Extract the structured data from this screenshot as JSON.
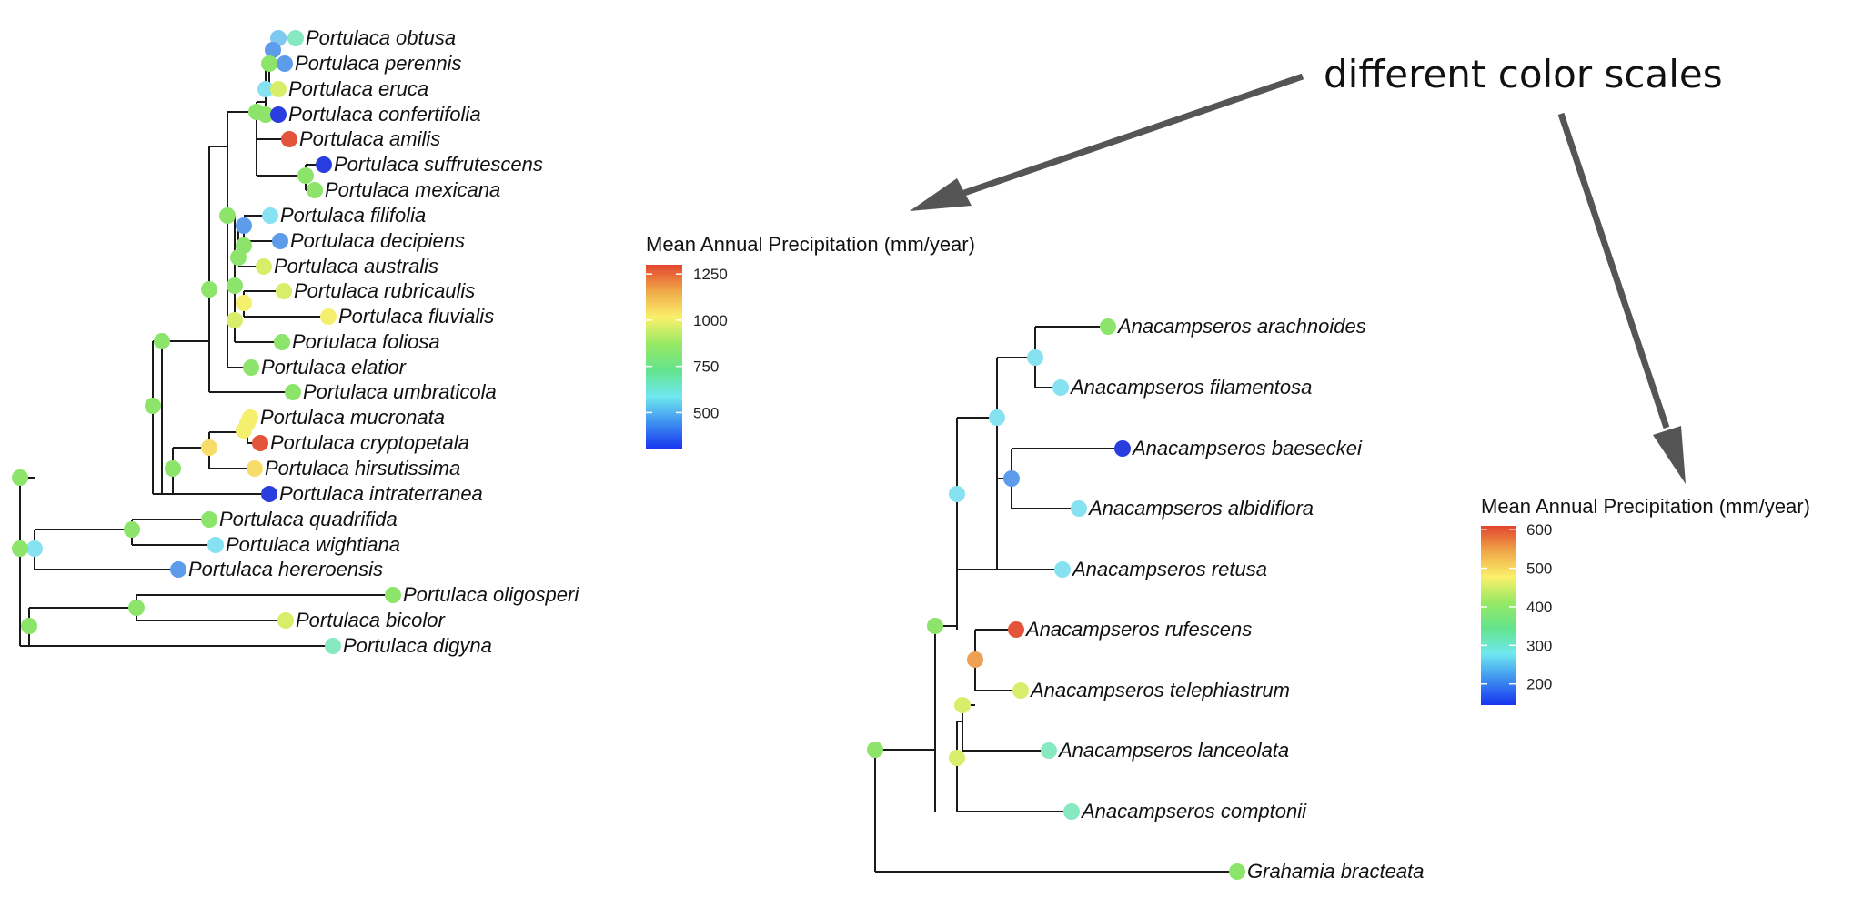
{
  "annotation": {
    "text": "different color scales"
  },
  "legends": [
    {
      "id": "left",
      "title": "Mean Annual Precipitation (mm/year)",
      "ticks": [
        {
          "value": 1250,
          "label": "1250"
        },
        {
          "value": 1000,
          "label": "1000"
        },
        {
          "value": 750,
          "label": "750"
        },
        {
          "value": 500,
          "label": "500"
        }
      ],
      "gradient_stops": [
        "#e2452f",
        "#f0a948",
        "#faf06a",
        "#97e964",
        "#64e48d",
        "#6fe8f0",
        "#3d8ff0",
        "#1733f0"
      ]
    },
    {
      "id": "right",
      "title": "Mean Annual Precipitation (mm/year)",
      "ticks": [
        {
          "value": 600,
          "label": "600"
        },
        {
          "value": 500,
          "label": "500"
        },
        {
          "value": 400,
          "label": "400"
        },
        {
          "value": 300,
          "label": "300"
        },
        {
          "value": 200,
          "label": "200"
        }
      ],
      "gradient_stops": [
        "#e2452f",
        "#f0a948",
        "#faf06a",
        "#97e964",
        "#64e48d",
        "#6fe8f0",
        "#3d8ff0",
        "#1733f0"
      ]
    }
  ],
  "colors": {
    "green": "#8ce46a",
    "lightgreen": "#a0e870",
    "mint": "#88e8c0",
    "cyan": "#86e2f0",
    "skyblue": "#7fc8f0",
    "blue": "#5c9ceb",
    "darkblue": "#2a3ee0",
    "yellow": "#f5ef6e",
    "yellowgreen": "#d8ee6a",
    "gold": "#f7dc6a",
    "red": "#e2553a",
    "orange": "#eea055"
  },
  "trees": {
    "portulaca": {
      "tips": [
        {
          "name": "Portulaca obtusa",
          "color": "mint"
        },
        {
          "name": "Portulaca perennis",
          "color": "blue"
        },
        {
          "name": "Portulaca eruca",
          "color": "yellowgreen"
        },
        {
          "name": "Portulaca confertifolia",
          "color": "darkblue"
        },
        {
          "name": "Portulaca amilis",
          "color": "red"
        },
        {
          "name": "Portulaca suffrutescens",
          "color": "darkblue"
        },
        {
          "name": "Portulaca mexicana",
          "color": "green"
        },
        {
          "name": "Portulaca filifolia",
          "color": "cyan"
        },
        {
          "name": "Portulaca decipiens",
          "color": "blue"
        },
        {
          "name": "Portulaca australis",
          "color": "yellowgreen"
        },
        {
          "name": "Portulaca rubricaulis",
          "color": "yellowgreen"
        },
        {
          "name": "Portulaca fluvialis",
          "color": "yellow"
        },
        {
          "name": "Portulaca foliosa",
          "color": "green"
        },
        {
          "name": "Portulaca elatior",
          "color": "green"
        },
        {
          "name": "Portulaca umbraticola",
          "color": "green"
        },
        {
          "name": "Portulaca mucronata",
          "color": "yellow"
        },
        {
          "name": "Portulaca cryptopetala",
          "color": "red"
        },
        {
          "name": "Portulaca hirsutissima",
          "color": "gold"
        },
        {
          "name": "Portulaca intraterranea",
          "color": "darkblue"
        },
        {
          "name": "Portulaca quadrifida",
          "color": "green"
        },
        {
          "name": "Portulaca wightiana",
          "color": "cyan"
        },
        {
          "name": "Portulaca hereroensis",
          "color": "blue"
        },
        {
          "name": "Portulaca oligosperi",
          "color": "green"
        },
        {
          "name": "Portulaca bicolor",
          "color": "yellowgreen"
        },
        {
          "name": "Portulaca digyna",
          "color": "mint"
        }
      ]
    },
    "anacampseros": {
      "tips": [
        {
          "name": "Anacampseros arachnoides",
          "color": "green"
        },
        {
          "name": "Anacampseros filamentosa",
          "color": "cyan"
        },
        {
          "name": "Anacampseros baeseckei",
          "color": "darkblue"
        },
        {
          "name": "Anacampseros albidiflora",
          "color": "cyan"
        },
        {
          "name": "Anacampseros retusa",
          "color": "cyan"
        },
        {
          "name": "Anacampseros rufescens",
          "color": "red"
        },
        {
          "name": "Anacampseros telephiastrum",
          "color": "yellowgreen"
        },
        {
          "name": "Anacampseros lanceolata",
          "color": "mint"
        },
        {
          "name": "Anacampseros comptonii",
          "color": "mint"
        },
        {
          "name": "Grahamia bracteata",
          "color": "green"
        }
      ]
    }
  }
}
